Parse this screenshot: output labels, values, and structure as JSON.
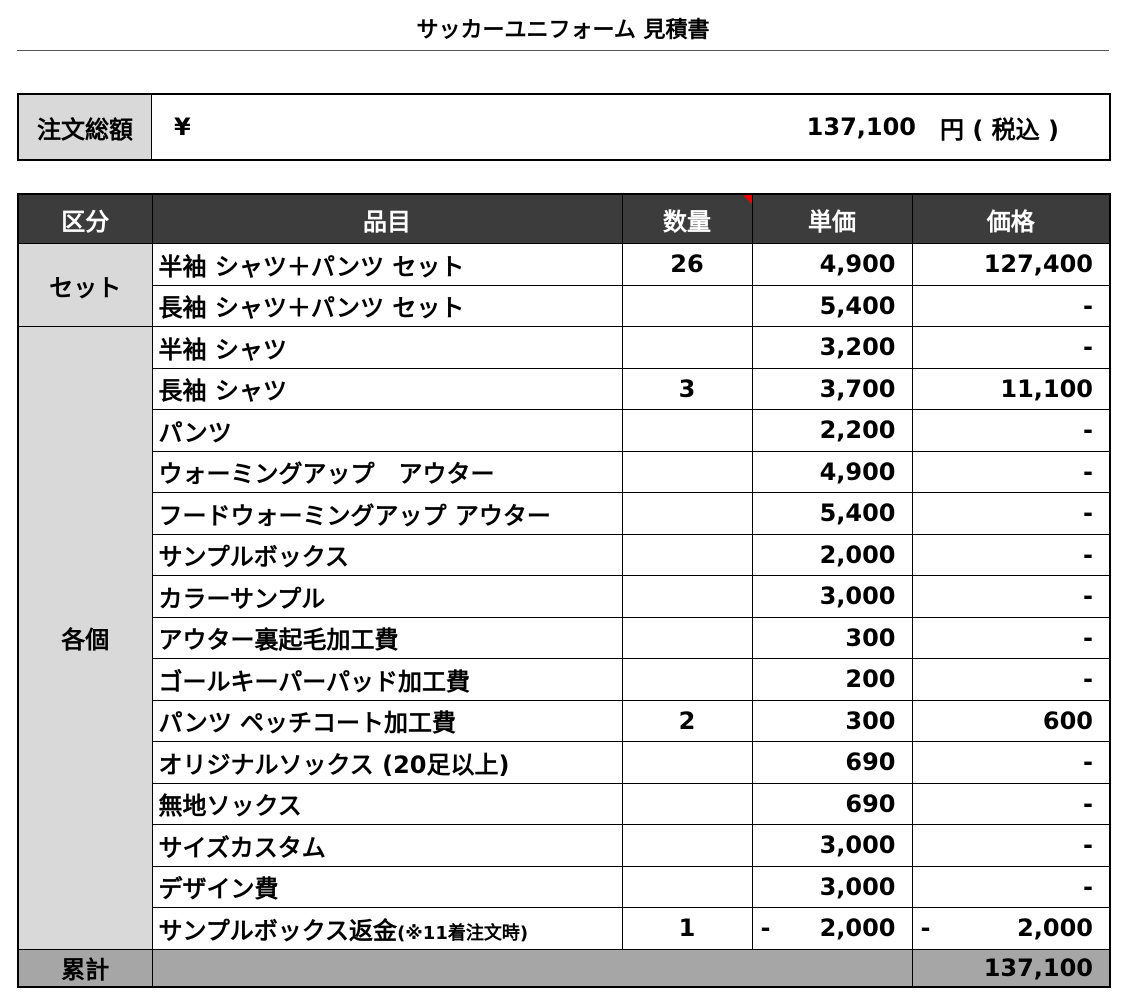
{
  "title": "サッカーユニフォーム 見積書",
  "summary": {
    "label": "注文総額",
    "currency": "¥",
    "amount": "137,100",
    "suffix": "円 ( 税込 )"
  },
  "table": {
    "headers": [
      "区分",
      "品目",
      "数量",
      "単価",
      "価格"
    ],
    "groups": [
      {
        "label": "セット",
        "items": [
          {
            "name": "半袖 シャツ＋パンツ セット",
            "qty": "26",
            "unit": "4,900",
            "price": "127,400"
          },
          {
            "name": "長袖 シャツ＋パンツ セット",
            "unit": "5,400",
            "price": "-"
          }
        ]
      },
      {
        "label": "各個",
        "items": [
          {
            "name": "半袖 シャツ",
            "unit": "3,200",
            "price": "-"
          },
          {
            "name": "長袖 シャツ",
            "qty": "3",
            "unit": "3,700",
            "price": "11,100"
          },
          {
            "name": "パンツ",
            "unit": "2,200",
            "price": "-"
          },
          {
            "name": "ウォーミングアップ　アウター",
            "unit": "4,900",
            "price": "-"
          },
          {
            "name": "フードウォーミングアップ アウター",
            "unit": "5,400",
            "price": "-"
          },
          {
            "name": "サンプルボックス",
            "unit": "2,000",
            "price": "-"
          },
          {
            "name": "カラーサンプル",
            "unit": "3,000",
            "price": "-"
          },
          {
            "name": "アウター裏起毛加工費",
            "unit": "300",
            "price": "-"
          },
          {
            "name": "ゴールキーパーパッド加工費",
            "unit": "200",
            "price": "-"
          },
          {
            "name": "パンツ ペッチコート加工費",
            "qty": "2",
            "unit": "300",
            "price": "600"
          },
          {
            "name": "オリジナルソックス (20足以上)",
            "unit": "690",
            "price": "-"
          },
          {
            "name": "無地ソックス",
            "unit": "690",
            "price": "-"
          },
          {
            "name": "サイズカスタム",
            "unit": "3,000",
            "price": "-"
          },
          {
            "name": "デザイン費",
            "unit": "3,000",
            "price": "-"
          },
          {
            "name": "サンプルボックス返金",
            "note": "(※11着注文時)",
            "qty": "1",
            "unit_sign": "-",
            "unit": "2,000",
            "price_sign": "-",
            "price": "2,000"
          }
        ]
      }
    ],
    "footer": {
      "label": "累計",
      "total": "137,100"
    }
  }
}
